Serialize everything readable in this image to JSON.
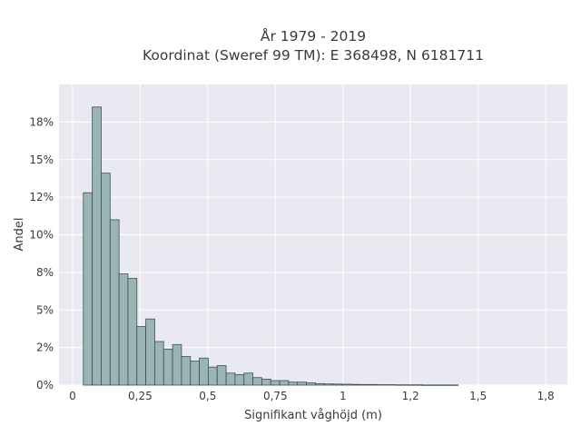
{
  "chart_data": {
    "type": "bar",
    "title": "År 1979 - 2019",
    "subtitle": "Koordinat (Sweref 99 TM): E 368498, N 6181711",
    "xlabel": "Signifikant våghöjd (m)",
    "ylabel": "Andel",
    "xlim": [
      -0.05,
      1.83
    ],
    "ylim": [
      0,
      0.2
    ],
    "grid": true,
    "x_ticks": [
      {
        "value": 0,
        "label": "0"
      },
      {
        "value": 0.25,
        "label": "0,25"
      },
      {
        "value": 0.5,
        "label": "0,5"
      },
      {
        "value": 0.75,
        "label": "0,75"
      },
      {
        "value": 1,
        "label": "1"
      },
      {
        "value": 1.25,
        "label": "1,2"
      },
      {
        "value": 1.5,
        "label": "1,5"
      },
      {
        "value": 1.75,
        "label": "1,8"
      }
    ],
    "y_ticks": [
      {
        "value": 0,
        "label": "0%"
      },
      {
        "value": 0.025,
        "label": "2%"
      },
      {
        "value": 0.05,
        "label": "5%"
      },
      {
        "value": 0.075,
        "label": "8%"
      },
      {
        "value": 0.1,
        "label": "10%"
      },
      {
        "value": 0.125,
        "label": "12%"
      },
      {
        "value": 0.15,
        "label": "15%"
      },
      {
        "value": 0.175,
        "label": "18%"
      }
    ],
    "bin_start": 0.04,
    "bin_width": 0.033,
    "values": [
      0.128,
      0.185,
      0.141,
      0.11,
      0.074,
      0.071,
      0.039,
      0.044,
      0.029,
      0.024,
      0.027,
      0.019,
      0.016,
      0.018,
      0.012,
      0.013,
      0.008,
      0.007,
      0.008,
      0.005,
      0.004,
      0.003,
      0.003,
      0.002,
      0.002,
      0.0015,
      0.001,
      0.0008,
      0.0007,
      0.0006,
      0.0005,
      0.0004,
      0.0004,
      0.0003,
      0.0003,
      0.0002,
      0.0002,
      0.0002,
      0.0001,
      0.0001,
      0.0001,
      0.0001
    ],
    "colors": {
      "bar_fill": "#9bb4b4",
      "bar_stroke": "#3f4f4f",
      "plot_bg": "#e9e9f1",
      "grid": "#ffffff"
    }
  }
}
